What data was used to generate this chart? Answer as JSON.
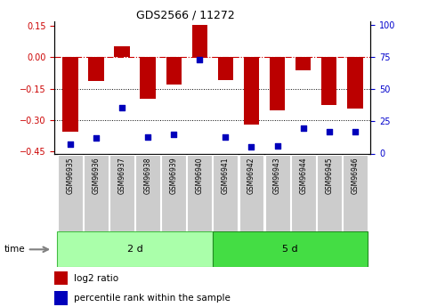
{
  "title": "GDS2566 / 11272",
  "samples": [
    "GSM96935",
    "GSM96936",
    "GSM96937",
    "GSM96938",
    "GSM96939",
    "GSM96940",
    "GSM96941",
    "GSM96942",
    "GSM96943",
    "GSM96944",
    "GSM96945",
    "GSM96946"
  ],
  "log2_ratio": [
    -0.355,
    -0.115,
    0.05,
    -0.2,
    -0.13,
    0.155,
    -0.11,
    -0.32,
    -0.255,
    -0.065,
    -0.23,
    -0.245
  ],
  "percentile_rank": [
    7,
    12,
    36,
    13,
    15,
    73,
    13,
    5,
    6,
    20,
    17,
    17
  ],
  "group1_count": 6,
  "group2_count": 6,
  "group1_label": "2 d",
  "group2_label": "5 d",
  "time_label": "time",
  "bar_color": "#BB0000",
  "dot_color": "#0000BB",
  "ylim_left": [
    -0.46,
    0.17
  ],
  "ylim_right": [
    0,
    103
  ],
  "yticks_left": [
    0.15,
    0,
    -0.15,
    -0.3,
    -0.45
  ],
  "yticks_right": [
    100,
    75,
    50,
    25,
    0
  ],
  "hline_dash": 0.0,
  "hline_dot1": -0.15,
  "hline_dot2": -0.3,
  "legend_bar_label": "log2 ratio",
  "legend_dot_label": "percentile rank within the sample",
  "group1_color": "#AAFFAA",
  "group2_color": "#44DD44",
  "sample_bg_color": "#CCCCCC",
  "bar_width": 0.6
}
